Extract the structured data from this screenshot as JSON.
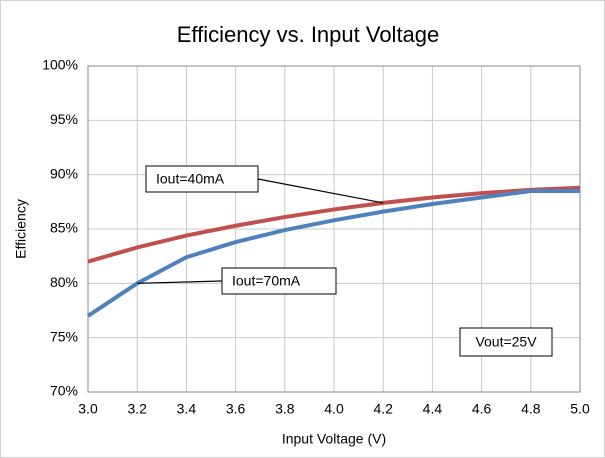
{
  "chart_data": {
    "type": "line",
    "title": "Efficiency vs. Input Voltage",
    "x_label": "Input Voltage (V)",
    "y_label": "Efficiency",
    "x": [
      3.0,
      3.2,
      3.4,
      3.6,
      3.8,
      4.0,
      4.2,
      4.4,
      4.6,
      4.8,
      5.0
    ],
    "series": [
      {
        "name": "Iout=40mA",
        "color": "#c0504d",
        "values": [
          82.0,
          83.3,
          84.4,
          85.3,
          86.1,
          86.8,
          87.4,
          87.9,
          88.3,
          88.6,
          88.8
        ]
      },
      {
        "name": "Iout=70mA",
        "color": "#4f81bd",
        "values": [
          77.0,
          80.0,
          82.4,
          83.8,
          84.9,
          85.8,
          86.6,
          87.3,
          87.9,
          88.5,
          88.5
        ]
      }
    ],
    "annotations": [
      "Vout=25V"
    ],
    "xlim": [
      3.0,
      5.0
    ],
    "xticks": [
      {
        "value": 3,
        "label": "3.0"
      },
      3.2,
      3.4,
      3.6,
      3.8,
      {
        "value": 4,
        "label": "4.0"
      },
      4.2,
      4.4,
      4.6,
      4.8,
      {
        "value": 5,
        "label": "5.0"
      }
    ],
    "ylim": [
      70,
      100
    ],
    "yticks": [
      {
        "value": 70,
        "label": "70%"
      },
      {
        "value": 75,
        "label": "75%"
      },
      {
        "value": 80,
        "label": "80%"
      },
      {
        "value": 85,
        "label": "85%"
      },
      {
        "value": 90,
        "label": "90%"
      },
      {
        "value": 95,
        "label": "95%"
      },
      {
        "value": 100,
        "label": "100%"
      }
    ],
    "grid": true
  }
}
